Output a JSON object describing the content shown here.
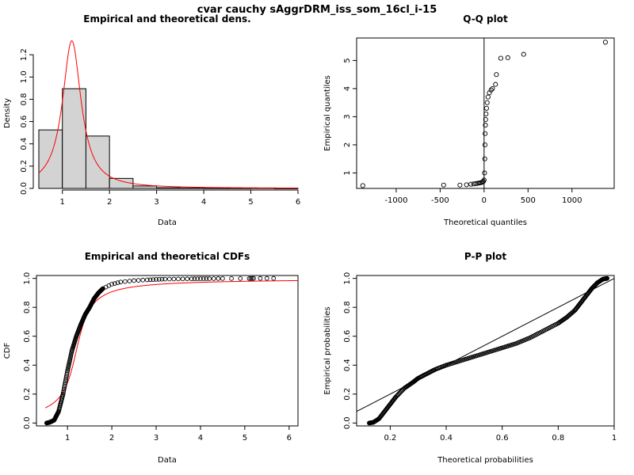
{
  "figure": {
    "title": "cvar cauchy sAggrDRM_iss_som_16cl_i-15"
  },
  "chart_data": [
    {
      "id": "density",
      "type": "bar",
      "title": "Empirical and theoretical dens.",
      "xlabel": "Data",
      "ylabel": "Density",
      "xlim": [
        0.45,
        6.0
      ],
      "ylim": [
        0,
        1.35
      ],
      "xticks": [
        1,
        2,
        3,
        4,
        5,
        6
      ],
      "yticks": [
        0.0,
        0.2,
        0.4,
        0.6,
        0.8,
        1.0,
        1.2
      ],
      "ytick_labels": [
        "0.0",
        "0.2",
        "0.4",
        "0.6",
        "0.8",
        "1.0",
        "1.2"
      ],
      "bins": [
        {
          "x0": 0.5,
          "x1": 1.0,
          "density": 0.525
        },
        {
          "x0": 1.0,
          "x1": 1.5,
          "density": 0.895
        },
        {
          "x0": 1.5,
          "x1": 2.0,
          "density": 0.47
        },
        {
          "x0": 2.0,
          "x1": 2.5,
          "density": 0.09
        },
        {
          "x0": 2.5,
          "x1": 3.0,
          "density": 0.022
        },
        {
          "x0": 3.0,
          "x1": 3.5,
          "density": 0.006
        },
        {
          "x0": 3.5,
          "x1": 4.0,
          "density": 0.004
        },
        {
          "x0": 4.0,
          "x1": 4.5,
          "density": 0.002
        },
        {
          "x0": 4.5,
          "x1": 5.0,
          "density": 0.002
        },
        {
          "x0": 5.0,
          "x1": 5.5,
          "density": 0.003
        },
        {
          "x0": 5.5,
          "x1": 6.0,
          "density": 0.001
        }
      ],
      "fit": {
        "dist": "cauchy",
        "location": 1.2,
        "scale": 0.24,
        "color": "#ff0000"
      },
      "bar_color": "#d3d3d3"
    },
    {
      "id": "qq",
      "type": "scatter",
      "title": "Q-Q plot",
      "xlabel": "Theoretical quantiles",
      "ylabel": "Empirical quantiles",
      "xlim": [
        -1450,
        1480
      ],
      "ylim": [
        0.45,
        5.8
      ],
      "xticks": [
        -1000,
        -500,
        0,
        500,
        1000
      ],
      "yticks": [
        1,
        2,
        3,
        4,
        5
      ],
      "points": [
        [
          -1380,
          0.55
        ],
        [
          -460,
          0.57
        ],
        [
          -275,
          0.57
        ],
        [
          -200,
          0.58
        ],
        [
          -150,
          0.6
        ],
        [
          -120,
          0.61
        ],
        [
          -95,
          0.62
        ],
        [
          -75,
          0.63
        ],
        [
          -60,
          0.64
        ],
        [
          -45,
          0.65
        ],
        [
          -30,
          0.66
        ],
        [
          -18,
          0.68
        ],
        [
          -8,
          0.7
        ],
        [
          0,
          0.75
        ],
        [
          5,
          1.0
        ],
        [
          8,
          1.5
        ],
        [
          10,
          2.0
        ],
        [
          12,
          2.4
        ],
        [
          15,
          2.7
        ],
        [
          18,
          2.9
        ],
        [
          22,
          3.1
        ],
        [
          28,
          3.3
        ],
        [
          35,
          3.5
        ],
        [
          45,
          3.7
        ],
        [
          60,
          3.85
        ],
        [
          80,
          3.95
        ],
        [
          95,
          4.0
        ],
        [
          130,
          4.15
        ],
        [
          140,
          4.5
        ],
        [
          190,
          5.08
        ],
        [
          270,
          5.1
        ],
        [
          450,
          5.22
        ],
        [
          1380,
          5.65
        ]
      ],
      "vline": 0,
      "line_color": "#000000"
    },
    {
      "id": "cdf",
      "type": "line",
      "title": "Empirical and theoretical CDFs",
      "xlabel": "Data",
      "ylabel": "CDF",
      "xlim": [
        0.3,
        6.2
      ],
      "ylim": [
        -0.02,
        1.02
      ],
      "xticks": [
        1,
        2,
        3,
        4,
        5,
        6
      ],
      "yticks": [
        0.0,
        0.2,
        0.4,
        0.6,
        0.8,
        1.0
      ],
      "ytick_labels": [
        "0.0",
        "0.2",
        "0.4",
        "0.6",
        "0.8",
        "1.0"
      ],
      "empirical": [
        [
          0.53,
          0.0
        ],
        [
          0.6,
          0.005
        ],
        [
          0.7,
          0.02
        ],
        [
          0.8,
          0.08
        ],
        [
          0.9,
          0.2
        ],
        [
          1.0,
          0.36
        ],
        [
          1.1,
          0.5
        ],
        [
          1.2,
          0.6
        ],
        [
          1.3,
          0.68
        ],
        [
          1.4,
          0.75
        ],
        [
          1.5,
          0.8
        ],
        [
          1.6,
          0.86
        ],
        [
          1.7,
          0.9
        ],
        [
          1.8,
          0.93
        ],
        [
          2.0,
          0.96
        ],
        [
          2.2,
          0.975
        ],
        [
          2.5,
          0.985
        ],
        [
          2.8,
          0.99
        ],
        [
          3.0,
          0.993
        ],
        [
          3.2,
          0.995
        ],
        [
          3.5,
          0.996
        ],
        [
          3.8,
          0.997
        ],
        [
          4.0,
          0.998
        ],
        [
          4.2,
          0.998
        ],
        [
          4.5,
          0.999
        ],
        [
          5.1,
          0.999
        ],
        [
          5.2,
          1.0
        ],
        [
          5.65,
          1.0
        ]
      ],
      "fit": {
        "dist": "cauchy",
        "location": 1.2,
        "scale": 0.24,
        "color": "#ff0000"
      }
    },
    {
      "id": "pp",
      "type": "scatter",
      "title": "P-P plot",
      "xlabel": "Theoretical probabilities",
      "ylabel": "Empirical probabilities",
      "xlim": [
        0.08,
        1.0
      ],
      "ylim": [
        -0.02,
        1.02
      ],
      "xticks": [
        0.2,
        0.4,
        0.6,
        0.8,
        1.0
      ],
      "yticks": [
        0.0,
        0.2,
        0.4,
        0.6,
        0.8,
        1.0
      ],
      "ytick_labels": [
        "0.0",
        "0.2",
        "0.4",
        "0.6",
        "0.8",
        "1.0"
      ],
      "points": [
        [
          0.125,
          0.0
        ],
        [
          0.14,
          0.005
        ],
        [
          0.16,
          0.03
        ],
        [
          0.18,
          0.08
        ],
        [
          0.2,
          0.13
        ],
        [
          0.22,
          0.18
        ],
        [
          0.25,
          0.24
        ],
        [
          0.28,
          0.28
        ],
        [
          0.3,
          0.31
        ],
        [
          0.33,
          0.34
        ],
        [
          0.36,
          0.37
        ],
        [
          0.4,
          0.4
        ],
        [
          0.45,
          0.43
        ],
        [
          0.5,
          0.46
        ],
        [
          0.55,
          0.49
        ],
        [
          0.6,
          0.52
        ],
        [
          0.65,
          0.55
        ],
        [
          0.7,
          0.59
        ],
        [
          0.75,
          0.64
        ],
        [
          0.8,
          0.69
        ],
        [
          0.83,
          0.73
        ],
        [
          0.86,
          0.78
        ],
        [
          0.88,
          0.83
        ],
        [
          0.9,
          0.88
        ],
        [
          0.92,
          0.93
        ],
        [
          0.94,
          0.97
        ],
        [
          0.96,
          0.995
        ],
        [
          0.975,
          1.0
        ]
      ],
      "ref_line": [
        [
          0.08,
          0.08
        ],
        [
          1.0,
          1.0
        ]
      ]
    }
  ]
}
